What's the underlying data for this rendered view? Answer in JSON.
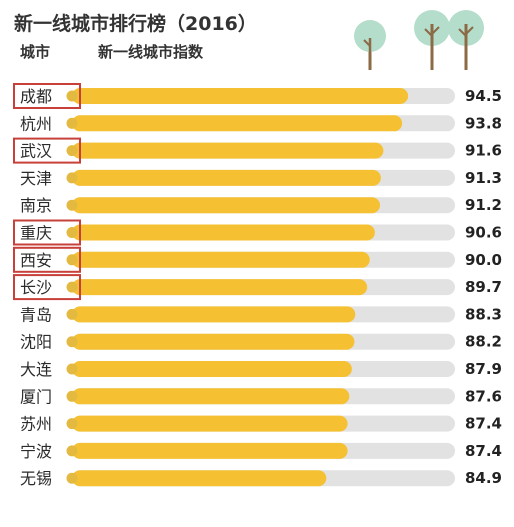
{
  "colors": {
    "bar_fill": "#F5C133",
    "bar_track": "#E2E2E2",
    "dot": "#E3B940",
    "highlight_border": "#C8403A",
    "tree_canopy": "#B4DDCB",
    "tree_trunk": "#8B6A45",
    "text": "#2b2b2b"
  },
  "chart_data": {
    "type": "bar",
    "orientation": "horizontal",
    "title": "新一线城市排行榜（2016）",
    "column_headers": {
      "city": "城市",
      "index": "新一线城市指数"
    },
    "categories": [
      "成都",
      "杭州",
      "武汉",
      "天津",
      "南京",
      "重庆",
      "西安",
      "长沙",
      "青岛",
      "沈阳",
      "大连",
      "厦门",
      "苏州",
      "宁波",
      "无锡"
    ],
    "values": [
      94.5,
      93.8,
      91.6,
      91.3,
      91.2,
      90.6,
      90.0,
      89.7,
      88.3,
      88.2,
      87.9,
      87.6,
      87.4,
      87.4,
      84.9
    ],
    "value_labels": [
      "94.5",
      "93.8",
      "91.6",
      "91.3",
      "91.2",
      "90.6",
      "90.0",
      "89.7",
      "88.3",
      "88.2",
      "87.9",
      "87.6",
      "87.4",
      "87.4",
      "84.9"
    ],
    "highlighted": [
      "成都",
      "武汉",
      "重庆",
      "西安",
      "长沙"
    ],
    "xlim": [
      56,
      100
    ],
    "grid": false,
    "legend": "none",
    "decorations": [
      "tree-icon",
      "tree-icon",
      "tree-icon"
    ]
  }
}
